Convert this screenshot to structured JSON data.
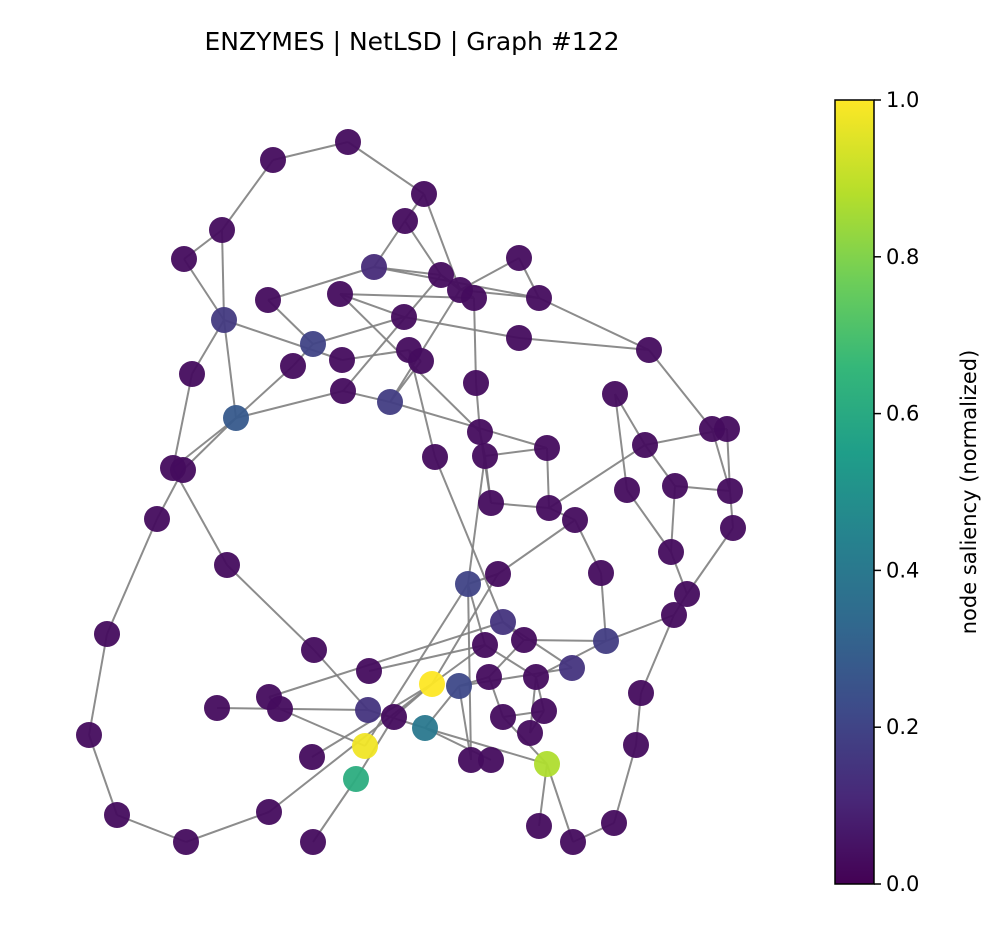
{
  "title": "ENZYMES | NetLSD | Graph #122",
  "colorbar": {
    "label": "node saliency (normalized)",
    "ticks": [
      "0.0",
      "0.2",
      "0.4",
      "0.6",
      "0.8",
      "1.0"
    ],
    "range": [
      0,
      1
    ],
    "colormap": "viridis",
    "colors": [
      "#440154",
      "#482878",
      "#3e4a89",
      "#31688e",
      "#26828e",
      "#1f9e89",
      "#35b779",
      "#6ece58",
      "#b5de2b",
      "#fde725"
    ]
  },
  "graph": {
    "node_count": 92,
    "edge_color": "#808080"
  }
}
